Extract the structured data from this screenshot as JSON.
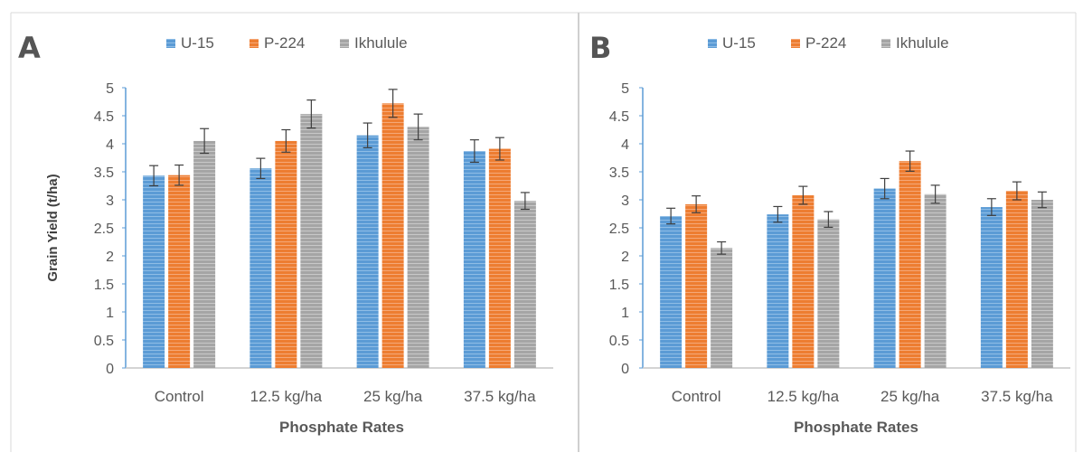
{
  "chart_data": [
    {
      "type": "bar",
      "panel": "A",
      "categories": [
        "Control",
        "12.5 kg/ha",
        "25 kg/ha",
        "37.5 kg/ha"
      ],
      "series": [
        {
          "name": "U-15",
          "values": [
            3.43,
            3.56,
            4.15,
            3.87
          ],
          "errors": [
            0.18,
            0.18,
            0.22,
            0.2
          ]
        },
        {
          "name": "P-224",
          "values": [
            3.44,
            4.05,
            4.72,
            3.91
          ],
          "errors": [
            0.18,
            0.2,
            0.25,
            0.2
          ]
        },
        {
          "name": "Ikhulule",
          "values": [
            4.05,
            4.53,
            4.3,
            2.98
          ],
          "errors": [
            0.22,
            0.25,
            0.23,
            0.15
          ]
        }
      ],
      "xlabel": "Phosphate Rates",
      "ylabel": "Grain Yield (t/ha)",
      "ylim": [
        0,
        5
      ],
      "yticks": [
        "0",
        "0.5",
        "1",
        "1.5",
        "2",
        "2.5",
        "3",
        "3.5",
        "4",
        "4.5",
        "5"
      ],
      "colors": [
        "#5b9bd5",
        "#ed7d31",
        "#a5a5a5"
      ],
      "legend": "top",
      "grid": false
    },
    {
      "type": "bar",
      "panel": "B",
      "categories": [
        "Control",
        "12.5 kg/ha",
        "25 kg/ha",
        "37.5 kg/ha"
      ],
      "series": [
        {
          "name": "U-15",
          "values": [
            2.71,
            2.74,
            3.2,
            2.87
          ],
          "errors": [
            0.14,
            0.14,
            0.18,
            0.15
          ]
        },
        {
          "name": "P-224",
          "values": [
            2.92,
            3.08,
            3.69,
            3.16
          ],
          "errors": [
            0.15,
            0.16,
            0.18,
            0.16
          ]
        },
        {
          "name": "Ikhulule",
          "values": [
            2.14,
            2.65,
            3.1,
            3.0
          ],
          "errors": [
            0.11,
            0.14,
            0.16,
            0.14
          ]
        }
      ],
      "xlabel": "Phosphate Rates",
      "ylabel": "",
      "ylim": [
        0,
        5
      ],
      "yticks": [
        "0",
        "0.5",
        "1",
        "1.5",
        "2",
        "2.5",
        "3",
        "3.5",
        "4",
        "4.5",
        "5"
      ],
      "colors": [
        "#5b9bd5",
        "#ed7d31",
        "#a5a5a5"
      ],
      "legend": "top",
      "grid": false
    }
  ]
}
